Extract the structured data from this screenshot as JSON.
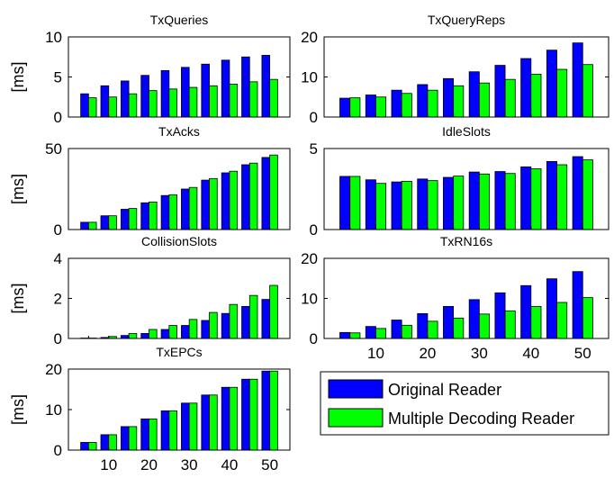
{
  "colors": {
    "original": "#0000ff",
    "multiple": "#00ff00"
  },
  "legend": {
    "labels": [
      "Original Reader",
      "Multiple Decoding Reader"
    ]
  },
  "chart_data": [
    {
      "type": "bar",
      "title": "TxQueries",
      "ylabel": "[ms]",
      "xlabel": "",
      "categories": [
        5,
        10,
        15,
        20,
        25,
        30,
        35,
        40,
        45,
        50
      ],
      "ylim": [
        0,
        10
      ],
      "yticks": [
        0,
        5,
        10
      ],
      "xticks": [],
      "series": [
        {
          "name": "Original Reader",
          "values": [
            2.9,
            3.9,
            4.5,
            5.2,
            5.8,
            6.2,
            6.6,
            7.1,
            7.5,
            7.7
          ]
        },
        {
          "name": "Multiple Decoding Reader",
          "values": [
            2.4,
            2.5,
            2.9,
            3.3,
            3.5,
            3.7,
            3.9,
            4.1,
            4.4,
            4.7
          ]
        }
      ]
    },
    {
      "type": "bar",
      "title": "TxQueryReps",
      "ylabel": "",
      "xlabel": "",
      "categories": [
        5,
        10,
        15,
        20,
        25,
        30,
        35,
        40,
        45,
        50
      ],
      "ylim": [
        0,
        20
      ],
      "yticks": [
        0,
        10,
        20
      ],
      "xticks": [],
      "series": [
        {
          "name": "Original Reader",
          "values": [
            4.7,
            5.5,
            6.7,
            8.1,
            9.6,
            11.3,
            12.9,
            14.6,
            16.7,
            18.5
          ]
        },
        {
          "name": "Multiple Decoding Reader",
          "values": [
            4.8,
            5.0,
            5.9,
            6.7,
            7.8,
            8.5,
            9.4,
            10.7,
            11.9,
            13.1
          ]
        }
      ]
    },
    {
      "type": "bar",
      "title": "TxAcks",
      "ylabel": "[ms]",
      "xlabel": "",
      "categories": [
        5,
        10,
        15,
        20,
        25,
        30,
        35,
        40,
        45,
        50
      ],
      "ylim": [
        0,
        50
      ],
      "yticks": [
        0,
        50
      ],
      "xticks": [],
      "series": [
        {
          "name": "Original Reader",
          "values": [
            4.5,
            8.5,
            12.5,
            16.5,
            21.0,
            25.0,
            30.5,
            35.0,
            40.0,
            44.5
          ]
        },
        {
          "name": "Multiple Decoding Reader",
          "values": [
            4.5,
            8.5,
            13.0,
            17.0,
            21.5,
            26.0,
            31.5,
            36.0,
            41.0,
            46.0
          ]
        }
      ]
    },
    {
      "type": "bar",
      "title": "IdleSlots",
      "ylabel": "",
      "xlabel": "",
      "categories": [
        5,
        10,
        15,
        20,
        25,
        30,
        35,
        40,
        45,
        50
      ],
      "ylim": [
        0,
        5
      ],
      "yticks": [
        0,
        5
      ],
      "xticks": [],
      "series": [
        {
          "name": "Original Reader",
          "values": [
            3.28,
            3.07,
            2.94,
            3.12,
            3.22,
            3.55,
            3.58,
            3.87,
            4.2,
            4.5
          ]
        },
        {
          "name": "Multiple Decoding Reader",
          "values": [
            3.28,
            2.85,
            2.98,
            3.02,
            3.3,
            3.43,
            3.46,
            3.75,
            4.0,
            4.3
          ]
        }
      ]
    },
    {
      "type": "bar",
      "title": "CollisionSlots",
      "ylabel": "[ms]",
      "xlabel": "",
      "categories": [
        5,
        10,
        15,
        20,
        25,
        30,
        35,
        40,
        45,
        50
      ],
      "ylim": [
        0,
        4
      ],
      "yticks": [
        0,
        2,
        4
      ],
      "xticks": [],
      "series": [
        {
          "name": "Original Reader",
          "values": [
            0.02,
            0.05,
            0.15,
            0.25,
            0.45,
            0.65,
            0.9,
            1.25,
            1.6,
            1.95
          ]
        },
        {
          "name": "Multiple Decoding Reader",
          "values": [
            0.02,
            0.1,
            0.25,
            0.45,
            0.65,
            0.95,
            1.3,
            1.7,
            2.15,
            2.65
          ]
        }
      ]
    },
    {
      "type": "bar",
      "title": "TxRN16s",
      "ylabel": "",
      "xlabel": "",
      "categories": [
        5,
        10,
        15,
        20,
        25,
        30,
        35,
        40,
        45,
        50
      ],
      "ylim": [
        0,
        20
      ],
      "yticks": [
        0,
        10,
        20
      ],
      "xticks": [
        10,
        20,
        30,
        40,
        50
      ],
      "series": [
        {
          "name": "Original Reader",
          "values": [
            1.5,
            3.0,
            4.6,
            6.2,
            8.0,
            9.7,
            11.4,
            13.2,
            14.9,
            16.7
          ]
        },
        {
          "name": "Multiple Decoding Reader",
          "values": [
            1.4,
            2.5,
            3.3,
            4.3,
            5.1,
            6.1,
            6.9,
            8.0,
            9.0,
            10.2
          ]
        }
      ]
    },
    {
      "type": "bar",
      "title": "TxEPCs",
      "ylabel": "[ms]",
      "xlabel": "",
      "categories": [
        5,
        10,
        15,
        20,
        25,
        30,
        35,
        40,
        45,
        50
      ],
      "ylim": [
        0,
        20
      ],
      "yticks": [
        0,
        10,
        20
      ],
      "xticks": [
        10,
        20,
        30,
        40,
        50
      ],
      "series": [
        {
          "name": "Original Reader",
          "values": [
            1.9,
            3.8,
            5.8,
            7.7,
            9.7,
            11.6,
            13.6,
            15.5,
            17.5,
            19.5
          ]
        },
        {
          "name": "Multiple Decoding Reader",
          "values": [
            1.9,
            3.8,
            5.8,
            7.7,
            9.7,
            11.6,
            13.6,
            15.5,
            17.5,
            19.5
          ]
        }
      ]
    }
  ]
}
